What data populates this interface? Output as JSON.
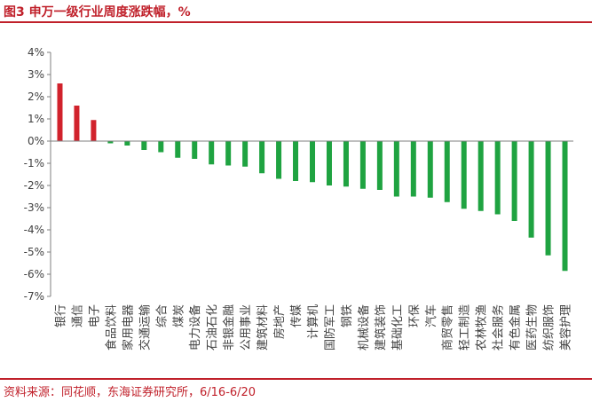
{
  "title": "图3  申万一级行业周度涨跌幅，%",
  "source": "资料来源：同花顺，东海证券研究所，6/16-6/20",
  "colors": {
    "positive": "#d1222c",
    "negative": "#1fa341",
    "axis": "#7f7f7f",
    "text": "#404040",
    "accent": "#c0202a"
  },
  "chart_data": {
    "type": "bar",
    "title": "申万一级行业周度涨跌幅，%",
    "xlabel": "",
    "ylabel": "%",
    "ylim": [
      -7,
      4
    ],
    "yticks": [
      4,
      3,
      2,
      1,
      0,
      -1,
      -2,
      -3,
      -4,
      -5,
      -6,
      -7
    ],
    "ytick_labels": [
      "4%",
      "3%",
      "2%",
      "1%",
      "0%",
      "-1%",
      "-2%",
      "-3%",
      "-4%",
      "-5%",
      "-6%",
      "-7%"
    ],
    "grid": false,
    "categories": [
      "银行",
      "通信",
      "电子",
      "食品饮料",
      "家用电器",
      "交通运输",
      "综合",
      "煤炭",
      "电力设备",
      "石油石化",
      "非银金融",
      "公用事业",
      "建筑材料",
      "房地产",
      "传媒",
      "计算机",
      "国防军工",
      "钢铁",
      "机械设备",
      "建筑装饰",
      "基础化工",
      "环保",
      "汽车",
      "商贸零售",
      "轻工制造",
      "农林牧渔",
      "社会服务",
      "有色金属",
      "医药生物",
      "纺织服饰",
      "美容护理"
    ],
    "values": [
      2.6,
      1.6,
      0.95,
      -0.1,
      -0.2,
      -0.4,
      -0.5,
      -0.75,
      -0.8,
      -1.05,
      -1.1,
      -1.15,
      -1.45,
      -1.7,
      -1.8,
      -1.85,
      -2.0,
      -2.05,
      -2.15,
      -2.2,
      -2.5,
      -2.5,
      -2.55,
      -2.75,
      -3.05,
      -3.15,
      -3.3,
      -3.6,
      -4.35,
      -5.15,
      -5.85
    ]
  }
}
